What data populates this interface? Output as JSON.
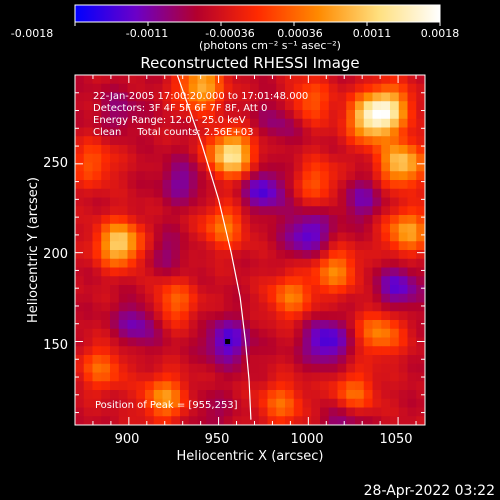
{
  "chart_data": {
    "type": "heatmap",
    "title": "Reconstructed RHESSI Image",
    "xlabel": "Heliocentric X (arcsec)",
    "ylabel": "Heliocentric Y (arcsec)",
    "xlim": [
      870,
      1065
    ],
    "ylim": [
      103,
      300
    ],
    "xticks": [
      900,
      950,
      1000,
      1050
    ],
    "yticks": [
      150,
      200,
      250
    ],
    "colorbar": {
      "range": [
        -0.0018,
        0.0018
      ],
      "tick_labels": [
        "-0.0018",
        "-0.0011",
        "-0.00036",
        "0.00036",
        "0.0011",
        "0.0018"
      ],
      "label": "(photons cm⁻² s⁻¹ asec⁻²)",
      "colors": [
        "#0000ff",
        "#6b00c8",
        "#b3002d",
        "#ff2a00",
        "#ff8a00",
        "#ffe080",
        "#ffffff"
      ]
    },
    "annotations": [
      "22-Jan-2005 17:00:20.000 to 17:01:48.000",
      "Detectors: 3F 4F 5F 6F 7F 8F, Att 0",
      "Energy Range: 12.0 - 25.0 keV",
      "Clean     Total counts: 2.56E+03"
    ],
    "peak_label": "Position of Peak = [955,253]",
    "peak": [
      955,
      253
    ],
    "limb": [
      [
        927,
        300
      ],
      [
        941,
        260
      ],
      [
        950,
        230
      ],
      [
        957,
        200
      ],
      [
        962,
        175
      ],
      [
        965,
        150
      ],
      [
        967,
        128
      ],
      [
        968,
        106
      ]
    ],
    "blobs": [
      {
        "x": 957,
        "y": 255,
        "v": 0.0018
      },
      {
        "x": 895,
        "y": 205,
        "v": 0.0016
      },
      {
        "x": 940,
        "y": 293,
        "v": 0.0013
      },
      {
        "x": 953,
        "y": 215,
        "v": 0.0009
      },
      {
        "x": 925,
        "y": 172,
        "v": 0.0008
      },
      {
        "x": 1035,
        "y": 275,
        "v": 0.0016
      },
      {
        "x": 1052,
        "y": 250,
        "v": 0.0015
      },
      {
        "x": 1045,
        "y": 282,
        "v": 0.0013
      },
      {
        "x": 1055,
        "y": 212,
        "v": 0.0012
      },
      {
        "x": 1040,
        "y": 155,
        "v": 0.001
      },
      {
        "x": 1015,
        "y": 190,
        "v": 0.001
      },
      {
        "x": 990,
        "y": 175,
        "v": 0.0009
      },
      {
        "x": 1025,
        "y": 120,
        "v": 0.0009
      },
      {
        "x": 985,
        "y": 115,
        "v": 0.0008
      },
      {
        "x": 920,
        "y": 118,
        "v": 0.0011
      },
      {
        "x": 885,
        "y": 135,
        "v": 0.0008
      },
      {
        "x": 880,
        "y": 250,
        "v": 0.0007
      },
      {
        "x": 1005,
        "y": 240,
        "v": 0.0007
      },
      {
        "x": 1000,
        "y": 285,
        "v": 0.0008
      },
      {
        "x": 930,
        "y": 240,
        "v": -0.0006
      },
      {
        "x": 920,
        "y": 200,
        "v": -0.0004
      },
      {
        "x": 905,
        "y": 160,
        "v": -0.0007
      },
      {
        "x": 955,
        "y": 150,
        "v": -0.0009
      },
      {
        "x": 1010,
        "y": 150,
        "v": -0.001
      },
      {
        "x": 1050,
        "y": 180,
        "v": -0.0008
      },
      {
        "x": 975,
        "y": 235,
        "v": -0.0009
      },
      {
        "x": 1000,
        "y": 210,
        "v": -0.0009
      },
      {
        "x": 1030,
        "y": 230,
        "v": -0.0006
      },
      {
        "x": 985,
        "y": 275,
        "v": -0.0005
      },
      {
        "x": 1020,
        "y": 105,
        "v": -0.0006
      },
      {
        "x": 895,
        "y": 280,
        "v": -0.0004
      },
      {
        "x": 945,
        "y": 110,
        "v": -0.0003
      }
    ]
  },
  "footer_timestamp": "28-Apr-2022 03:22"
}
